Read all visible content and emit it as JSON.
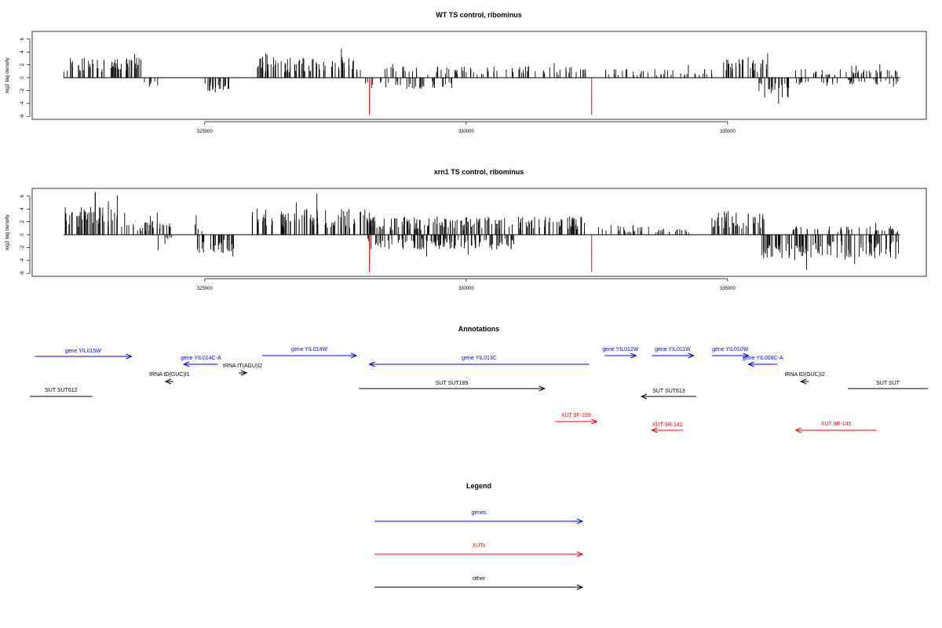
{
  "colors": {
    "gene": "#0000ff",
    "xut": "#ff0000",
    "other": "#000000",
    "dip": "#ff0000",
    "bar": "#000000"
  },
  "chart_data": [
    {
      "type": "bar",
      "id": "wt",
      "title": "WT TS control, ribominus",
      "ylabel": "log2 tag density",
      "xlim": [
        321700,
        338800
      ],
      "ylim": [
        -6,
        7
      ],
      "yticks": [
        6,
        4,
        2,
        0,
        -2,
        -4,
        -6
      ],
      "ytick_labels": [
        "6",
        "4",
        "2",
        "0",
        "-2",
        "-4",
        "-6"
      ],
      "xticks": [
        325000,
        330000,
        335000
      ],
      "xtick_labels": [
        "325000",
        "330000",
        "335000"
      ],
      "regions": [
        {
          "start": 322300,
          "end": 323800,
          "strand": "+",
          "level": 2.3
        },
        {
          "start": 323800,
          "end": 324100,
          "strand": "-",
          "level": 1.2
        },
        {
          "start": 325000,
          "end": 325550,
          "strand": "-",
          "level": 1.8
        },
        {
          "start": 326000,
          "end": 328000,
          "strand": "+",
          "level": 2.4
        },
        {
          "start": 328000,
          "end": 329800,
          "strand": "-",
          "level": 1.3
        },
        {
          "start": 328300,
          "end": 332300,
          "strand": "+",
          "level": 1.3
        },
        {
          "start": 332600,
          "end": 334700,
          "strand": "+",
          "level": 1.0
        },
        {
          "start": 334900,
          "end": 335800,
          "strand": "+",
          "level": 2.2
        },
        {
          "start": 335600,
          "end": 336200,
          "strand": "-",
          "level": 2.3
        },
        {
          "start": 336200,
          "end": 338300,
          "strand": "+",
          "level": 1.0
        },
        {
          "start": 336300,
          "end": 338300,
          "strand": "-",
          "level": 0.8
        }
      ],
      "red_dips": [
        {
          "x": 328150,
          "y": -5.8
        },
        {
          "x": 332400,
          "y": -5.8
        }
      ]
    },
    {
      "type": "bar",
      "id": "xrn1",
      "title": "xrn1 TS control, ribominus",
      "ylabel": "log2 tag density",
      "xlim": [
        321700,
        338800
      ],
      "ylim": [
        -6,
        7
      ],
      "yticks": [
        6,
        4,
        2,
        0,
        -2,
        -4,
        -6
      ],
      "ytick_labels": [
        "6",
        "4",
        "2",
        "0",
        "-2",
        "-4",
        "-6"
      ],
      "xticks": [
        325000,
        330000,
        335000
      ],
      "xtick_labels": [
        "325000",
        "330000",
        "335000"
      ],
      "regions": [
        {
          "start": 322300,
          "end": 323600,
          "strand": "+",
          "level": 3.2
        },
        {
          "start": 323600,
          "end": 324400,
          "strand": "+",
          "level": 1.6
        },
        {
          "start": 324100,
          "end": 324400,
          "strand": "-",
          "level": 1.2
        },
        {
          "start": 324800,
          "end": 325600,
          "strand": "-",
          "level": 2.2
        },
        {
          "start": 324800,
          "end": 325000,
          "strand": "+",
          "level": 1.5
        },
        {
          "start": 325900,
          "end": 328200,
          "strand": "+",
          "level": 3.0
        },
        {
          "start": 328100,
          "end": 332300,
          "strand": "+",
          "level": 2.1
        },
        {
          "start": 328100,
          "end": 331000,
          "strand": "-",
          "level": 1.7
        },
        {
          "start": 332400,
          "end": 333500,
          "strand": "+",
          "level": 1.1
        },
        {
          "start": 333600,
          "end": 334500,
          "strand": "+",
          "level": 0.7
        },
        {
          "start": 334700,
          "end": 335800,
          "strand": "+",
          "level": 2.7
        },
        {
          "start": 335600,
          "end": 338300,
          "strand": "-",
          "level": 2.8
        },
        {
          "start": 336200,
          "end": 338300,
          "strand": "+",
          "level": 1.0
        }
      ],
      "red_dips": [
        {
          "x": 328150,
          "y": -5.8
        },
        {
          "x": 332400,
          "y": -5.8
        }
      ]
    }
  ],
  "annotations": {
    "title": "Annotations",
    "features": [
      {
        "label": "gene YIL015W",
        "type": "gene",
        "start": 321750,
        "end": 323600,
        "dir": "right"
      },
      {
        "label": "gene YIL014C-A",
        "type": "gene",
        "start": 324600,
        "end": 325250,
        "dir": "left"
      },
      {
        "label": "tRNA tD(GUC)I1",
        "type": "other",
        "start": 324250,
        "end": 324400,
        "dir": "left"
      },
      {
        "label": "tRNA tT(AGU)I2",
        "type": "other",
        "start": 325650,
        "end": 325800,
        "dir": "right"
      },
      {
        "label": "gene YIL014W",
        "type": "gene",
        "start": 326100,
        "end": 327900,
        "dir": "right"
      },
      {
        "label": "SUT SUT612",
        "type": "other",
        "start": 321600,
        "end": 322850,
        "dir": "none"
      },
      {
        "label": "gene YIL013C",
        "type": "gene",
        "start": 328150,
        "end": 332350,
        "dir": "left"
      },
      {
        "label": "SUT SUT189",
        "type": "other",
        "start": 327950,
        "end": 331500,
        "dir": "right"
      },
      {
        "label": "XUT 9F-159",
        "type": "xut",
        "start": 331700,
        "end": 332500,
        "dir": "right"
      },
      {
        "label": "gene YIL012W",
        "type": "gene",
        "start": 332650,
        "end": 333250,
        "dir": "right"
      },
      {
        "label": "gene YIL011W",
        "type": "gene",
        "start": 333550,
        "end": 334350,
        "dir": "right"
      },
      {
        "label": "SUT SUT613",
        "type": "other",
        "start": 333350,
        "end": 334400,
        "dir": "left"
      },
      {
        "label": "XUT 9R-141",
        "type": "xut",
        "start": 333550,
        "end": 334150,
        "dir": "left"
      },
      {
        "label": "gene YIL010W",
        "type": "gene",
        "start": 334700,
        "end": 335400,
        "dir": "right"
      },
      {
        "label": "gene YIL009C-A",
        "type": "gene",
        "start": 335400,
        "end": 335950,
        "dir": "left"
      },
      {
        "label": "tRNA tD(GUC)I2",
        "type": "other",
        "start": 336400,
        "end": 336550,
        "dir": "left"
      },
      {
        "label": "XUT 9R-145",
        "type": "xut",
        "start": 336300,
        "end": 337850,
        "dir": "left"
      },
      {
        "label": "SUT SUT",
        "type": "other",
        "start": 337300,
        "end": 338900,
        "dir": "none"
      }
    ]
  },
  "legend": {
    "title": "Legend",
    "items": [
      {
        "label": "genes",
        "type": "gene"
      },
      {
        "label": "XUTs",
        "type": "xut"
      },
      {
        "label": "other",
        "type": "other"
      }
    ]
  }
}
